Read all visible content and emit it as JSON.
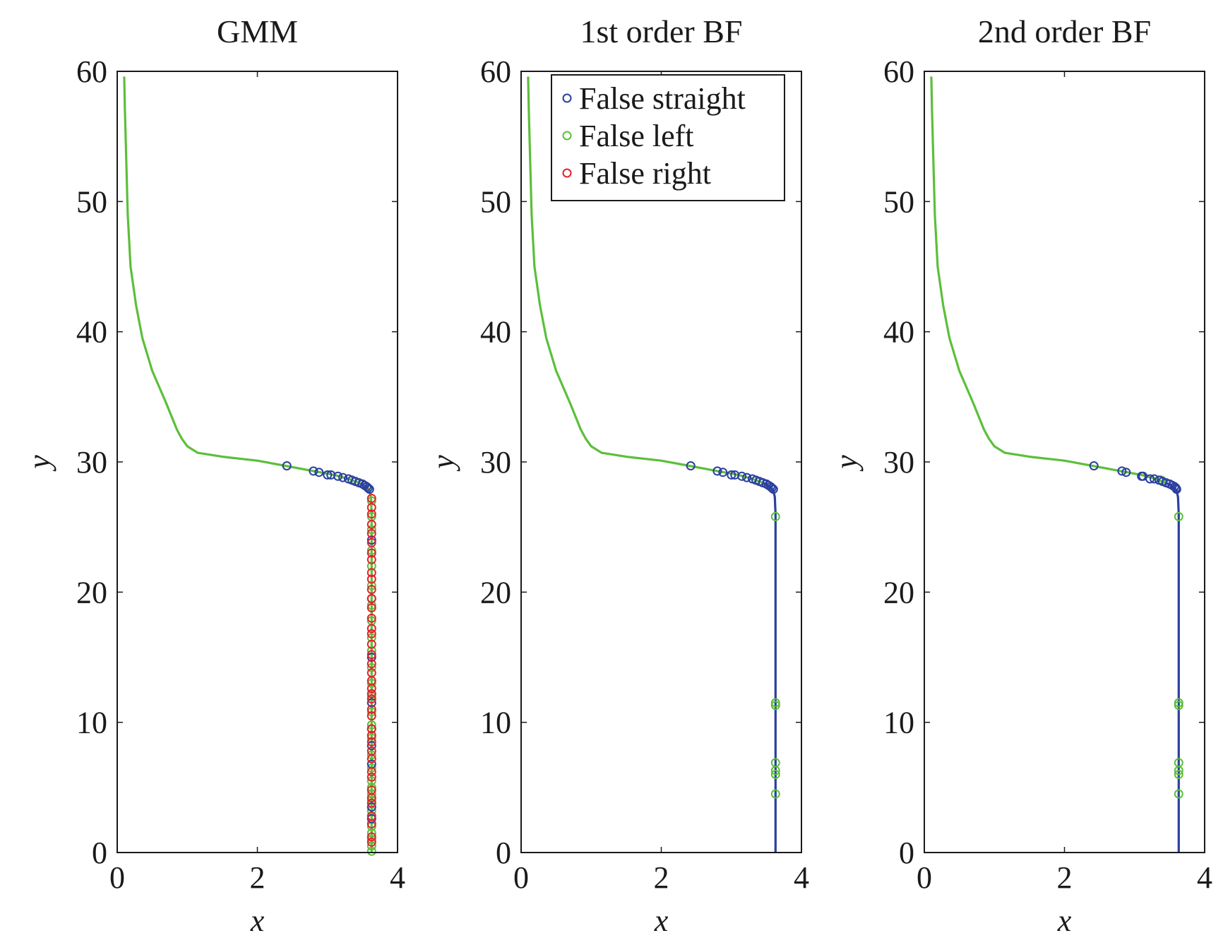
{
  "colors": {
    "false_straight": "#2b3f9e",
    "false_left": "#5cbf3a",
    "false_right": "#e5202e",
    "axes": "#1a1a1a"
  },
  "legend": {
    "placement": "top-right (second panel)",
    "entries": [
      "False straight",
      "False left",
      "False right"
    ]
  },
  "chart_data": [
    {
      "type": "line",
      "title": "GMM",
      "xlabel": "x",
      "ylabel": "y",
      "xlim": [
        0,
        4
      ],
      "ylim": [
        0,
        60
      ],
      "xticks": [
        "0",
        "2",
        "4"
      ],
      "yticks": [
        "0",
        "10",
        "20",
        "30",
        "40",
        "50",
        "60"
      ],
      "grid": false,
      "trajectory": {
        "upper_color": "false_left",
        "lower_color": "false_left",
        "points": [
          [
            0.1,
            59.6
          ],
          [
            0.11,
            57
          ],
          [
            0.13,
            53
          ],
          [
            0.15,
            49
          ],
          [
            0.19,
            45
          ],
          [
            0.27,
            42
          ],
          [
            0.36,
            39.5
          ],
          [
            0.5,
            37
          ],
          [
            0.7,
            34.5
          ],
          [
            0.85,
            32.5
          ],
          [
            0.92,
            31.8
          ],
          [
            1.0,
            31.2
          ],
          [
            1.15,
            30.7
          ],
          [
            1.5,
            30.4
          ],
          [
            2.0,
            30.1
          ],
          [
            2.4,
            29.7
          ],
          [
            2.8,
            29.3
          ],
          [
            3.1,
            29.0
          ],
          [
            3.3,
            28.7
          ],
          [
            3.45,
            28.4
          ],
          [
            3.55,
            28.1
          ],
          [
            3.6,
            27.8
          ],
          [
            3.62,
            27.3
          ],
          [
            3.63,
            26
          ],
          [
            3.63,
            0
          ]
        ]
      },
      "markers": {
        "false_straight": [
          [
            2.42,
            29.7
          ],
          [
            2.8,
            29.3
          ],
          [
            2.88,
            29.2
          ],
          [
            3.0,
            29.0
          ],
          [
            3.05,
            29.0
          ],
          [
            3.15,
            28.9
          ],
          [
            3.22,
            28.8
          ],
          [
            3.3,
            28.7
          ],
          [
            3.35,
            28.6
          ],
          [
            3.4,
            28.5
          ],
          [
            3.45,
            28.4
          ],
          [
            3.5,
            28.3
          ],
          [
            3.53,
            28.2
          ],
          [
            3.56,
            28.1
          ],
          [
            3.58,
            28.0
          ],
          [
            3.6,
            27.9
          ],
          [
            3.63,
            24
          ],
          [
            3.63,
            19.5
          ],
          [
            3.63,
            15
          ],
          [
            3.63,
            11.5
          ],
          [
            3.63,
            9.5
          ],
          [
            3.63,
            8.2
          ],
          [
            3.63,
            6.8
          ],
          [
            3.63,
            3.5
          ],
          [
            3.63,
            2.6
          ]
        ],
        "false_left": [
          [
            3.63,
            27.0
          ],
          [
            3.63,
            25.8
          ],
          [
            3.63,
            24.8
          ],
          [
            3.63,
            23.2
          ],
          [
            3.63,
            22.0
          ],
          [
            3.63,
            20.5
          ],
          [
            3.63,
            19.0
          ],
          [
            3.63,
            17.8
          ],
          [
            3.63,
            16.5
          ],
          [
            3.63,
            15.5
          ],
          [
            3.63,
            14.2
          ],
          [
            3.63,
            13.0
          ],
          [
            3.63,
            12.0
          ],
          [
            3.63,
            10.8
          ],
          [
            3.63,
            9.8
          ],
          [
            3.63,
            8.8
          ],
          [
            3.63,
            7.5
          ],
          [
            3.63,
            6.5
          ],
          [
            3.63,
            5.5
          ],
          [
            3.63,
            5.0
          ],
          [
            3.63,
            4.5
          ],
          [
            3.63,
            4.0
          ],
          [
            3.63,
            3.2
          ],
          [
            3.63,
            2.0
          ],
          [
            3.63,
            1.5
          ],
          [
            3.63,
            1.0
          ],
          [
            3.63,
            0.5
          ],
          [
            3.63,
            0.1
          ]
        ],
        "false_right": [
          [
            3.63,
            27.2
          ],
          [
            3.63,
            26.5
          ],
          [
            3.63,
            26.0
          ],
          [
            3.63,
            25.2
          ],
          [
            3.63,
            24.5
          ],
          [
            3.63,
            23.8
          ],
          [
            3.63,
            23.0
          ],
          [
            3.63,
            22.5
          ],
          [
            3.63,
            21.5
          ],
          [
            3.63,
            21.0
          ],
          [
            3.63,
            20.2
          ],
          [
            3.63,
            19.5
          ],
          [
            3.63,
            18.8
          ],
          [
            3.63,
            18.0
          ],
          [
            3.63,
            17.2
          ],
          [
            3.63,
            16.8
          ],
          [
            3.63,
            16.0
          ],
          [
            3.63,
            15.2
          ],
          [
            3.63,
            14.5
          ],
          [
            3.63,
            13.8
          ],
          [
            3.63,
            13.2
          ],
          [
            3.63,
            12.6
          ],
          [
            3.63,
            12.2
          ],
          [
            3.63,
            11.8
          ],
          [
            3.63,
            11.0
          ],
          [
            3.63,
            10.5
          ],
          [
            3.63,
            9.5
          ],
          [
            3.63,
            9.0
          ],
          [
            3.63,
            8.5
          ],
          [
            3.63,
            7.8
          ],
          [
            3.63,
            7.2
          ],
          [
            3.63,
            6.2
          ],
          [
            3.63,
            5.8
          ],
          [
            3.63,
            4.8
          ],
          [
            3.63,
            4.2
          ],
          [
            3.63,
            3.8
          ],
          [
            3.63,
            2.8
          ],
          [
            3.63,
            2.2
          ],
          [
            3.63,
            1.2
          ],
          [
            3.63,
            0.8
          ]
        ]
      }
    },
    {
      "type": "line",
      "title": "1st order BF",
      "xlabel": "x",
      "ylabel": "y",
      "xlim": [
        0,
        4
      ],
      "ylim": [
        0,
        60
      ],
      "xticks": [
        "0",
        "2",
        "4"
      ],
      "yticks": [
        "0",
        "10",
        "20",
        "30",
        "40",
        "50",
        "60"
      ],
      "grid": false,
      "trajectory": {
        "upper_color": "false_left",
        "lower_color": "false_straight",
        "split_at_y": 28.4,
        "points": [
          [
            0.1,
            59.6
          ],
          [
            0.11,
            57
          ],
          [
            0.13,
            53
          ],
          [
            0.15,
            49
          ],
          [
            0.19,
            45
          ],
          [
            0.27,
            42
          ],
          [
            0.36,
            39.5
          ],
          [
            0.5,
            37
          ],
          [
            0.7,
            34.5
          ],
          [
            0.85,
            32.5
          ],
          [
            0.92,
            31.8
          ],
          [
            1.0,
            31.2
          ],
          [
            1.15,
            30.7
          ],
          [
            1.5,
            30.4
          ],
          [
            2.0,
            30.1
          ],
          [
            2.4,
            29.7
          ],
          [
            2.8,
            29.3
          ],
          [
            3.1,
            29.0
          ],
          [
            3.3,
            28.7
          ],
          [
            3.45,
            28.4
          ],
          [
            3.55,
            28.1
          ],
          [
            3.6,
            27.8
          ],
          [
            3.62,
            27.3
          ],
          [
            3.63,
            26
          ],
          [
            3.63,
            0
          ]
        ]
      },
      "markers": {
        "false_straight": [
          [
            2.42,
            29.7
          ],
          [
            2.8,
            29.3
          ],
          [
            2.88,
            29.2
          ],
          [
            3.0,
            29.0
          ],
          [
            3.05,
            29.0
          ],
          [
            3.15,
            28.9
          ],
          [
            3.22,
            28.8
          ],
          [
            3.3,
            28.7
          ],
          [
            3.35,
            28.6
          ],
          [
            3.4,
            28.5
          ],
          [
            3.45,
            28.4
          ],
          [
            3.5,
            28.3
          ],
          [
            3.53,
            28.2
          ],
          [
            3.56,
            28.1
          ],
          [
            3.58,
            28.0
          ],
          [
            3.6,
            27.9
          ]
        ],
        "false_left": [
          [
            3.63,
            25.8
          ],
          [
            3.63,
            11.5
          ],
          [
            3.63,
            11.3
          ],
          [
            3.63,
            6.9
          ],
          [
            3.63,
            6.3
          ],
          [
            3.63,
            6.0
          ],
          [
            3.63,
            4.5
          ]
        ],
        "false_right": []
      }
    },
    {
      "type": "line",
      "title": "2nd order BF",
      "xlabel": "x",
      "ylabel": "y",
      "xlim": [
        0,
        4
      ],
      "ylim": [
        0,
        60
      ],
      "xticks": [
        "0",
        "2",
        "4"
      ],
      "yticks": [
        "0",
        "10",
        "20",
        "30",
        "40",
        "50",
        "60"
      ],
      "grid": false,
      "trajectory": {
        "upper_color": "false_left",
        "lower_color": "false_straight",
        "split_at_y": 28.4,
        "points": [
          [
            0.1,
            59.6
          ],
          [
            0.11,
            57
          ],
          [
            0.13,
            53
          ],
          [
            0.15,
            49
          ],
          [
            0.19,
            45
          ],
          [
            0.27,
            42
          ],
          [
            0.36,
            39.5
          ],
          [
            0.5,
            37
          ],
          [
            0.7,
            34.5
          ],
          [
            0.85,
            32.5
          ],
          [
            0.92,
            31.8
          ],
          [
            1.0,
            31.2
          ],
          [
            1.15,
            30.7
          ],
          [
            1.5,
            30.4
          ],
          [
            2.0,
            30.1
          ],
          [
            2.4,
            29.7
          ],
          [
            2.8,
            29.3
          ],
          [
            3.1,
            29.0
          ],
          [
            3.3,
            28.7
          ],
          [
            3.45,
            28.4
          ],
          [
            3.55,
            28.1
          ],
          [
            3.6,
            27.8
          ],
          [
            3.62,
            27.3
          ],
          [
            3.63,
            26
          ],
          [
            3.63,
            0
          ]
        ]
      },
      "markers": {
        "false_straight": [
          [
            2.42,
            29.7
          ],
          [
            2.82,
            29.3
          ],
          [
            2.88,
            29.2
          ],
          [
            3.1,
            28.9
          ],
          [
            3.12,
            28.9
          ],
          [
            3.22,
            28.7
          ],
          [
            3.28,
            28.7
          ],
          [
            3.35,
            28.6
          ],
          [
            3.4,
            28.5
          ],
          [
            3.45,
            28.4
          ],
          [
            3.5,
            28.3
          ],
          [
            3.54,
            28.2
          ],
          [
            3.57,
            28.1
          ],
          [
            3.59,
            28.0
          ],
          [
            3.6,
            27.9
          ]
        ],
        "false_left": [
          [
            3.38,
            28.6
          ],
          [
            3.63,
            25.8
          ],
          [
            3.63,
            11.5
          ],
          [
            3.63,
            11.3
          ],
          [
            3.63,
            6.9
          ],
          [
            3.63,
            6.3
          ],
          [
            3.63,
            6.0
          ],
          [
            3.63,
            4.5
          ]
        ],
        "false_right": []
      }
    }
  ]
}
